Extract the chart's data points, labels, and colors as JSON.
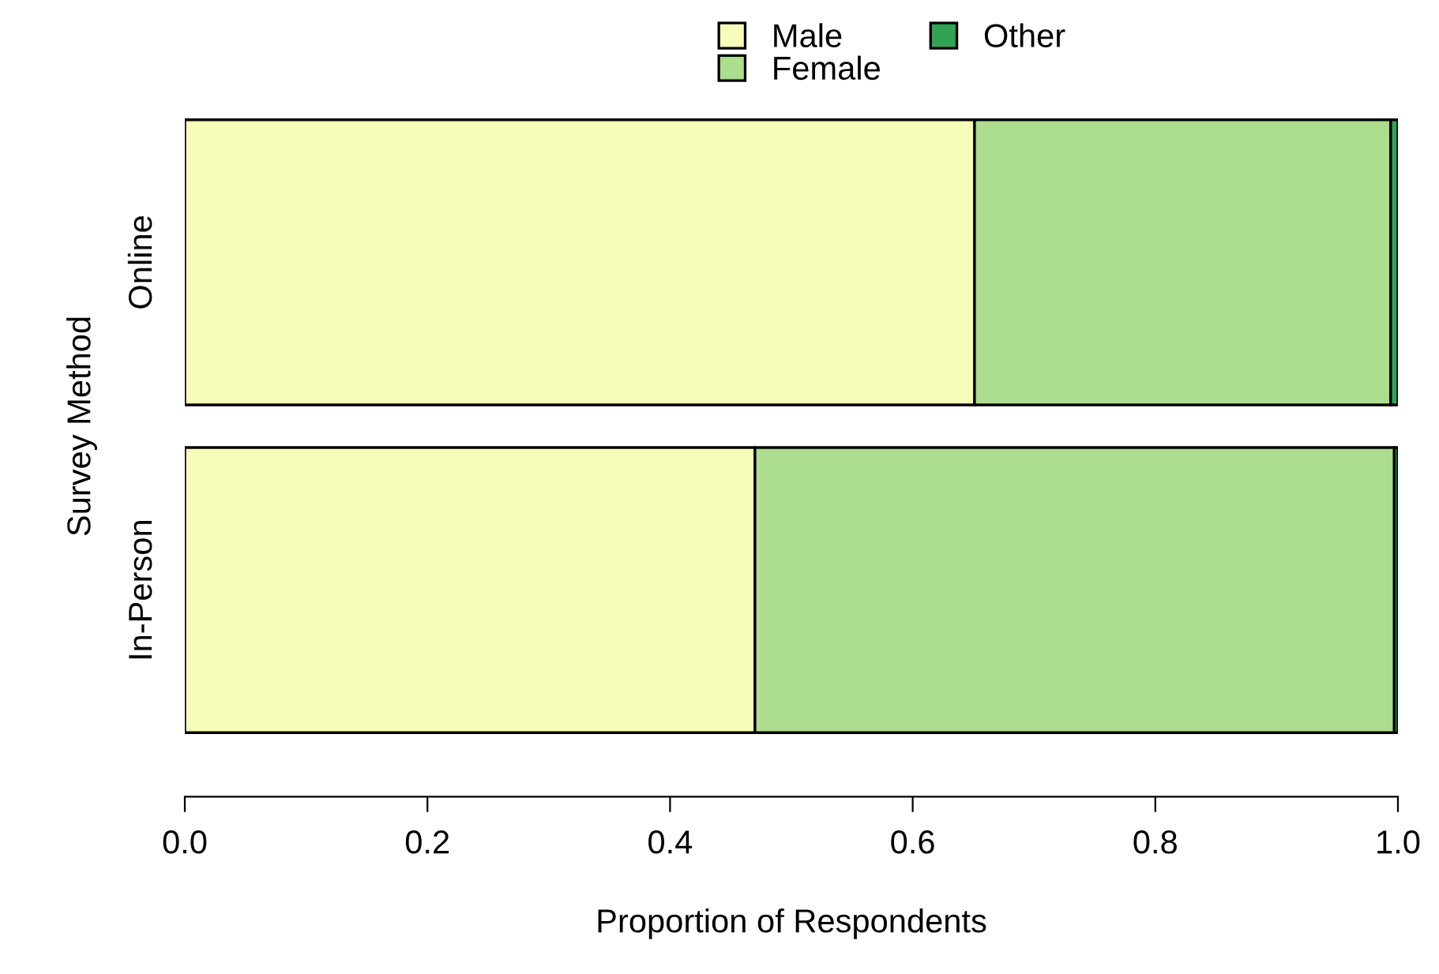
{
  "chart_data": {
    "type": "bar",
    "orientation": "horizontal",
    "stacked": true,
    "categories": [
      "Online",
      "In-Person"
    ],
    "series": [
      {
        "name": "Male",
        "color": "#f7fcb9",
        "values": [
          0.651,
          0.47
        ]
      },
      {
        "name": "Female",
        "color": "#addd8e",
        "values": [
          0.343,
          0.527
        ]
      },
      {
        "name": "Other",
        "color": "#31a354",
        "values": [
          0.006,
          0.003
        ]
      }
    ],
    "xlabel": "Proportion of Respondents",
    "ylabel": "Survey Method",
    "xlim": [
      0,
      1
    ],
    "xticks": [
      {
        "value": 0,
        "label": "0.0"
      },
      {
        "value": 0.2,
        "label": "0.2"
      },
      {
        "value": 0.4,
        "label": "0.4"
      },
      {
        "value": 0.6,
        "label": "0.6"
      },
      {
        "value": 0.8,
        "label": "0.8"
      },
      {
        "value": 1,
        "label": "1.0"
      }
    ],
    "legend": "top",
    "grid": false
  }
}
